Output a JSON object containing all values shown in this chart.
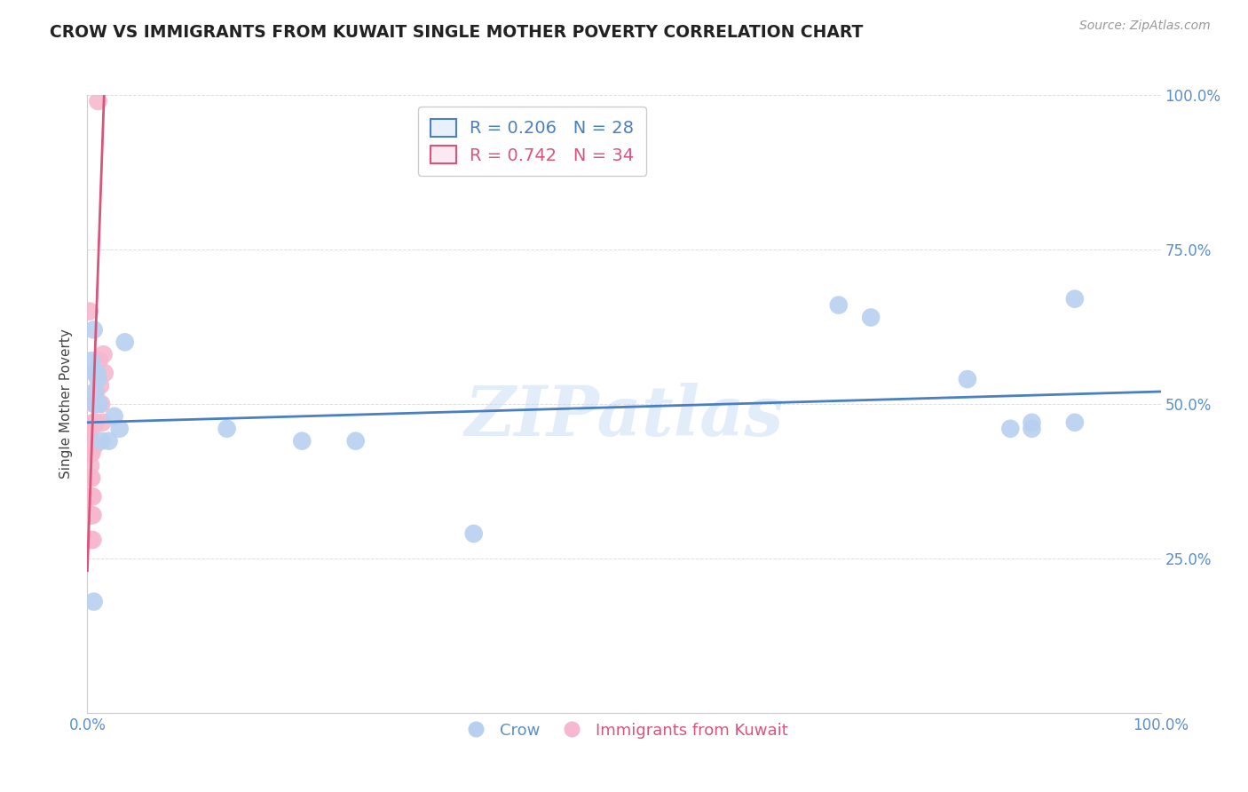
{
  "title": "CROW VS IMMIGRANTS FROM KUWAIT SINGLE MOTHER POVERTY CORRELATION CHART",
  "source": "Source: ZipAtlas.com",
  "ylabel": "Single Mother Poverty",
  "crow_color": "#b8d0f0",
  "kuwait_color": "#f5b8ce",
  "crow_line_color": "#4a7fc1",
  "kuwait_line_color": "#d9547a",
  "watermark": "ZIPatlas",
  "crow_x": [
    0.004,
    0.006,
    0.007,
    0.007,
    0.007,
    0.009,
    0.01,
    0.011,
    0.013,
    0.02,
    0.025,
    0.03,
    0.035,
    0.13,
    0.2,
    0.25,
    0.7,
    0.73,
    0.82,
    0.86,
    0.88,
    0.92,
    0.006,
    0.36,
    0.88,
    0.92
  ],
  "crow_y": [
    0.57,
    0.62,
    0.55,
    0.52,
    0.5,
    0.55,
    0.54,
    0.5,
    0.44,
    0.44,
    0.48,
    0.46,
    0.6,
    0.46,
    0.44,
    0.44,
    0.66,
    0.64,
    0.54,
    0.46,
    0.46,
    0.67,
    0.18,
    0.29,
    0.47,
    0.47
  ],
  "kuwait_x": [
    0.002,
    0.002,
    0.003,
    0.003,
    0.003,
    0.003,
    0.003,
    0.003,
    0.004,
    0.004,
    0.004,
    0.004,
    0.004,
    0.004,
    0.005,
    0.005,
    0.005,
    0.006,
    0.006,
    0.006,
    0.007,
    0.007,
    0.007,
    0.008,
    0.008,
    0.009,
    0.009,
    0.01,
    0.011,
    0.012,
    0.013,
    0.014,
    0.015,
    0.016
  ],
  "kuwait_y": [
    0.65,
    0.45,
    0.42,
    0.4,
    0.38,
    0.35,
    0.32,
    0.28,
    0.46,
    0.44,
    0.42,
    0.38,
    0.35,
    0.32,
    0.35,
    0.32,
    0.28,
    0.5,
    0.47,
    0.43,
    0.55,
    0.5,
    0.47,
    0.52,
    0.47,
    0.55,
    0.5,
    0.99,
    0.57,
    0.53,
    0.5,
    0.47,
    0.58,
    0.55
  ],
  "xlim": [
    0.0,
    1.0
  ],
  "ylim": [
    0.0,
    1.0
  ],
  "background_color": "#ffffff",
  "grid_color": "#e0e0e0",
  "legend_box_color": "#e8f0fc",
  "legend_box_color2": "#fce8f0"
}
